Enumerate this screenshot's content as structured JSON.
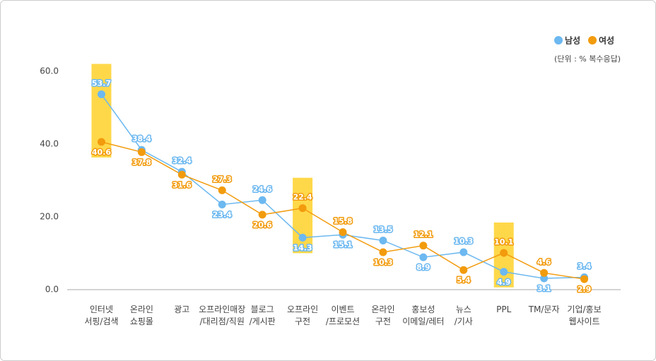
{
  "chart_data": {
    "type": "line",
    "note": "(단위 : % 복수응답)",
    "categories": [
      "인터넷\n서핑/검색",
      "온라인\n쇼핑몰",
      "광고",
      "오프라인매장\n/대리점/직원",
      "블로그\n/게시판",
      "오프라인\n구전",
      "이벤트\n/프로모션",
      "온라인\n구전",
      "홍보성\n이메일/레터",
      "뉴스\n/기사",
      "PPL",
      "TM/문자",
      "기업/홍보\n웹사이트"
    ],
    "series": [
      {
        "name": "남성",
        "color": "#6cb8f0",
        "values": [
          53.7,
          38.4,
          32.4,
          23.4,
          24.6,
          14.3,
          15.1,
          13.5,
          8.9,
          10.3,
          4.9,
          3.1,
          3.4
        ]
      },
      {
        "name": "여성",
        "color": "#f29b0d",
        "values": [
          40.6,
          37.8,
          31.6,
          27.3,
          20.6,
          22.4,
          15.8,
          10.3,
          12.1,
          5.4,
          10.1,
          4.6,
          2.9
        ]
      }
    ],
    "highlighted": [
      0,
      5,
      10
    ],
    "highlight_color": "#ffd84a",
    "ylim": [
      0,
      60
    ],
    "yticks": [
      {
        "value": 0,
        "label": "0.0"
      },
      {
        "value": 20,
        "label": "20.0"
      },
      {
        "value": 40,
        "label": "40.0"
      },
      {
        "value": 60,
        "label": "60.0"
      }
    ]
  }
}
